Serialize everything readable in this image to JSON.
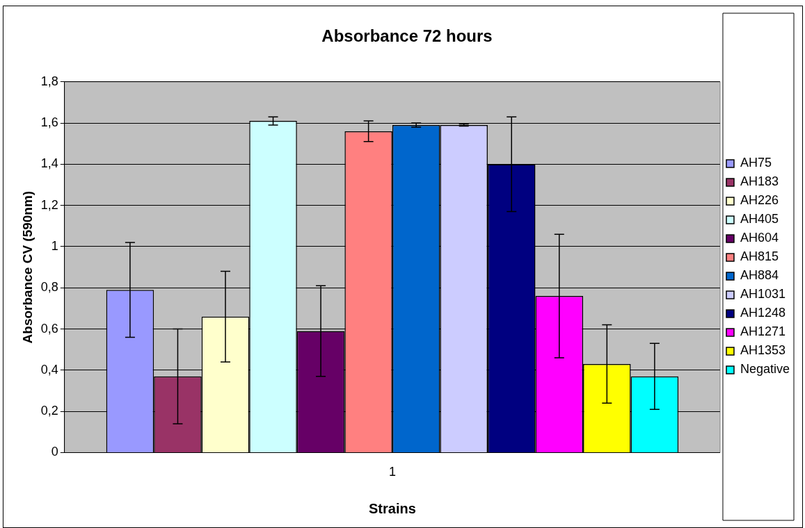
{
  "chart_data": {
    "type": "bar",
    "title": "Absorbance 72 hours",
    "xlabel": "Strains",
    "ylabel": "Absorbance CV (590nm)",
    "categories": [
      "1"
    ],
    "series": [
      {
        "name": "AH75",
        "color": "#9999ff",
        "values": [
          0.79
        ],
        "errors": [
          0.23
        ]
      },
      {
        "name": "AH183",
        "color": "#993366",
        "values": [
          0.37
        ],
        "errors": [
          0.23
        ]
      },
      {
        "name": "AH226",
        "color": "#ffffcc",
        "values": [
          0.66
        ],
        "errors": [
          0.22
        ]
      },
      {
        "name": "AH405",
        "color": "#ccffff",
        "values": [
          1.61
        ],
        "errors": [
          0.02
        ]
      },
      {
        "name": "AH604",
        "color": "#660066",
        "values": [
          0.59
        ],
        "errors": [
          0.22
        ]
      },
      {
        "name": "AH815",
        "color": "#ff8080",
        "values": [
          1.56
        ],
        "errors": [
          0.05
        ]
      },
      {
        "name": "AH884",
        "color": "#0066cc",
        "values": [
          1.59
        ],
        "errors": [
          0.01
        ]
      },
      {
        "name": "AH1031",
        "color": "#ccccff",
        "values": [
          1.59
        ],
        "errors": [
          0.005
        ]
      },
      {
        "name": "AH1248",
        "color": "#000080",
        "values": [
          1.4
        ],
        "errors": [
          0.23
        ]
      },
      {
        "name": "AH1271",
        "color": "#ff00ff",
        "values": [
          0.76
        ],
        "errors": [
          0.3
        ]
      },
      {
        "name": "AH1353",
        "color": "#ffff00",
        "values": [
          0.43
        ],
        "errors": [
          0.19
        ]
      },
      {
        "name": "Negative",
        "color": "#00ffff",
        "values": [
          0.37
        ],
        "errors": [
          0.16
        ]
      }
    ],
    "ylim": [
      0,
      1.8
    ],
    "yticks": [
      {
        "value": 0,
        "label": "0"
      },
      {
        "value": 0.2,
        "label": "0,2"
      },
      {
        "value": 0.4,
        "label": "0,4"
      },
      {
        "value": 0.6,
        "label": "0,6"
      },
      {
        "value": 0.8,
        "label": "0,8"
      },
      {
        "value": 1,
        "label": "1"
      },
      {
        "value": 1.2,
        "label": "1,2"
      },
      {
        "value": 1.4,
        "label": "1,4"
      },
      {
        "value": 1.6,
        "label": "1,6"
      },
      {
        "value": 1.8,
        "label": "1,8"
      }
    ],
    "grid": "y",
    "legend": "right"
  }
}
